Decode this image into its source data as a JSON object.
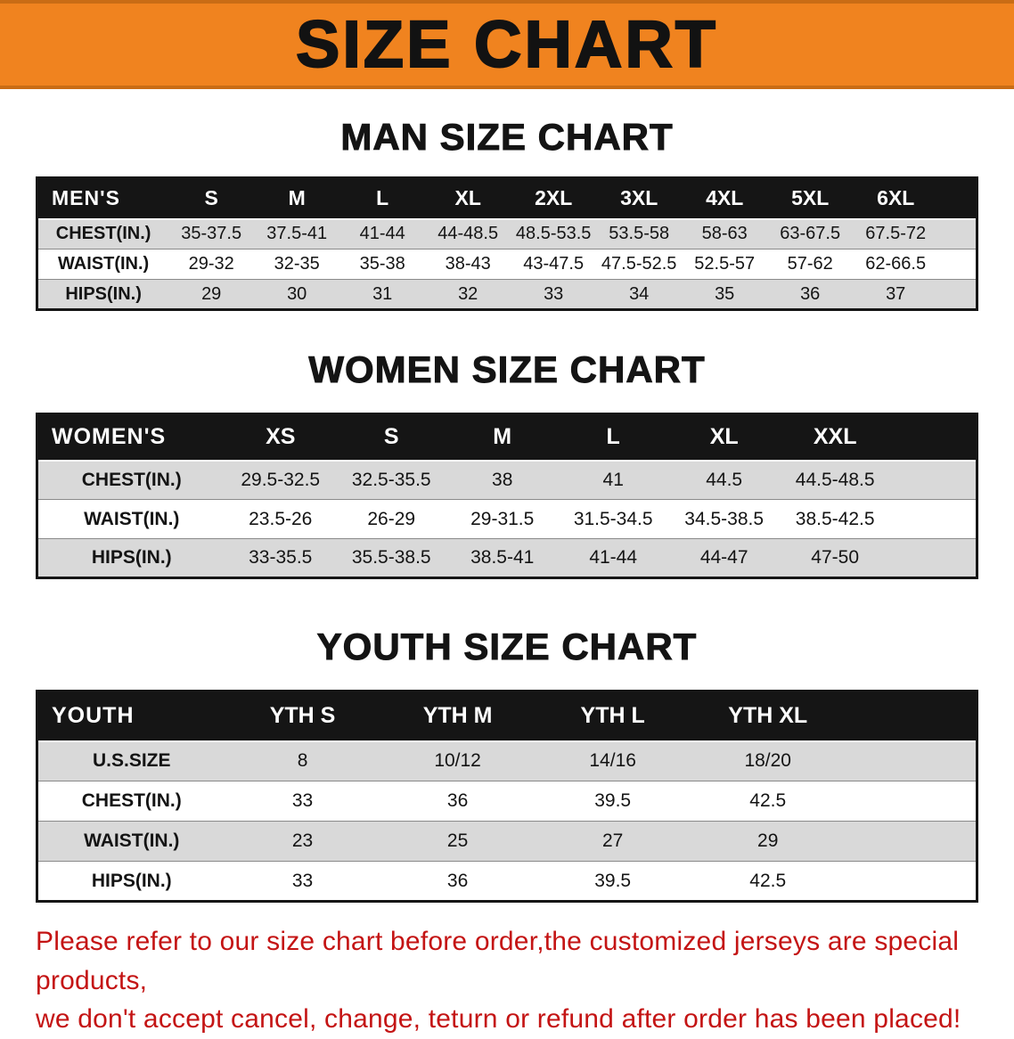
{
  "banner": {
    "title": "SIZE CHART"
  },
  "colors": {
    "banner_bg": "#f0831f",
    "table_header_bg": "#151515",
    "stripe_row": "#d9d9d9",
    "note_red": "#c41414"
  },
  "sections": [
    {
      "heading": "MAN SIZE CHART",
      "table": {
        "header_label": "MEN'S",
        "columns": [
          "S",
          "M",
          "L",
          "XL",
          "2XL",
          "3XL",
          "4XL",
          "5XL",
          "6XL"
        ],
        "rows": [
          {
            "label": "CHEST(IN.)",
            "values": [
              "35-37.5",
              "37.5-41",
              "41-44",
              "44-48.5",
              "48.5-53.5",
              "53.5-58",
              "58-63",
              "63-67.5",
              "67.5-72"
            ]
          },
          {
            "label": "WAIST(IN.)",
            "values": [
              "29-32",
              "32-35",
              "35-38",
              "38-43",
              "43-47.5",
              "47.5-52.5",
              "52.5-57",
              "57-62",
              "62-66.5"
            ]
          },
          {
            "label": "HIPS(IN.)",
            "values": [
              "29",
              "30",
              "31",
              "32",
              "33",
              "34",
              "35",
              "36",
              "37"
            ]
          }
        ]
      }
    },
    {
      "heading": "WOMEN SIZE CHART",
      "table": {
        "header_label": "WOMEN'S",
        "columns": [
          "XS",
          "S",
          "M",
          "L",
          "XL",
          "XXL"
        ],
        "rows": [
          {
            "label": "CHEST(IN.)",
            "values": [
              "29.5-32.5",
              "32.5-35.5",
              "38",
              "41",
              "44.5",
              "44.5-48.5"
            ]
          },
          {
            "label": "WAIST(IN.)",
            "values": [
              "23.5-26",
              "26-29",
              "29-31.5",
              "31.5-34.5",
              "34.5-38.5",
              "38.5-42.5"
            ]
          },
          {
            "label": "HIPS(IN.)",
            "values": [
              "33-35.5",
              "35.5-38.5",
              "38.5-41",
              "41-44",
              "44-47",
              "47-50"
            ]
          }
        ]
      }
    },
    {
      "heading": "YOUTH SIZE CHART",
      "table": {
        "header_label": "YOUTH",
        "columns": [
          "YTH S",
          "YTH M",
          "YTH L",
          "YTH XL"
        ],
        "rows": [
          {
            "label": "U.S.SIZE",
            "values": [
              "8",
              "10/12",
              "14/16",
              "18/20"
            ]
          },
          {
            "label": "CHEST(IN.)",
            "values": [
              "33",
              "36",
              "39.5",
              "42.5"
            ]
          },
          {
            "label": "WAIST(IN.)",
            "values": [
              "23",
              "25",
              "27",
              "29"
            ]
          },
          {
            "label": "HIPS(IN.)",
            "values": [
              "33",
              "36",
              "39.5",
              "42.5"
            ]
          }
        ]
      }
    }
  ],
  "footer": {
    "line1": "Please refer to our size chart before order,the customized jerseys are special products,",
    "line2": "we don't accept cancel, change, teturn or refund after order has been placed!"
  }
}
